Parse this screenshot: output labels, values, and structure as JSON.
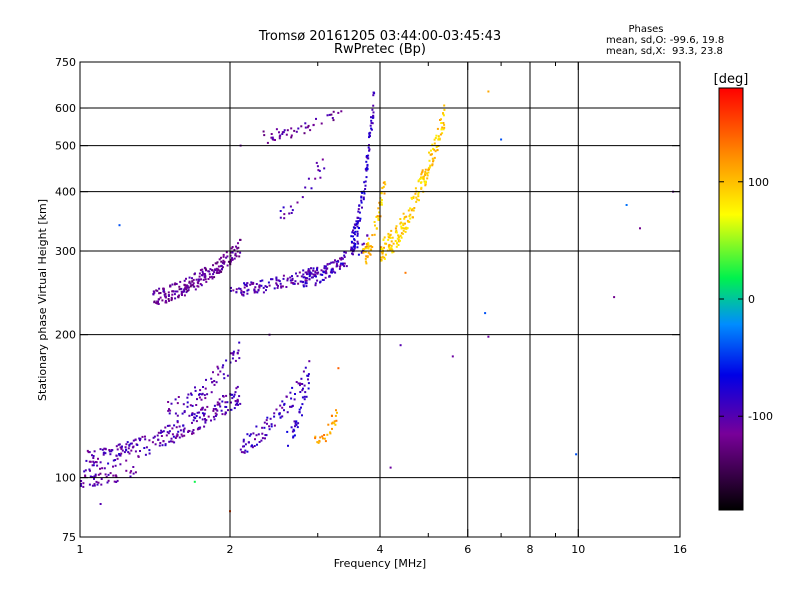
{
  "chart_data": {
    "type": "scatter",
    "title": "Tromsø 20161205 03:44:00-03:45:43",
    "subtitle": "RwPretec (Bp)",
    "stats": {
      "heading": "Phases",
      "line_o": "mean, sd,O: -99.6, 19.8",
      "line_x": "mean, sd,X:  93.3, 23.8"
    },
    "xlabel": "Frequency [MHz]",
    "ylabel": "Stationary phase Virtual Height [km]",
    "x_scale": "log",
    "y_scale": "log",
    "xlim": [
      1,
      16
    ],
    "ylim": [
      75,
      750
    ],
    "x_ticks": [
      1,
      2,
      4,
      6,
      8,
      10,
      16
    ],
    "x_tick_labels": [
      "1",
      "2",
      "4",
      "6",
      "8",
      "10",
      "16"
    ],
    "x_grid": [
      2,
      4,
      6,
      8,
      10
    ],
    "x_minor": [
      3,
      5,
      7,
      9
    ],
    "y_ticks": [
      75,
      100,
      200,
      300,
      400,
      500,
      600,
      750
    ],
    "y_tick_labels": [
      "75",
      "100",
      "200",
      "300",
      "400",
      "500",
      "600",
      "750"
    ],
    "y_grid": [
      100,
      200,
      300,
      400,
      500,
      600
    ],
    "grid": true,
    "colorbar": {
      "label": "[deg]",
      "range": [
        -180,
        180
      ],
      "ticks": [
        100,
        0,
        -100
      ],
      "tick_labels": [
        "100",
        "0",
        "-100"
      ],
      "colormap": "rainbow (black-purple-blue-cyan-green-yellow-orange-red)"
    },
    "traces": [
      {
        "f": [
          1.0,
          1.3
        ],
        "h": [
          98,
          104
        ],
        "phase": -105,
        "n": 45,
        "hs": 0.03
      },
      {
        "f": [
          1.0,
          2.1
        ],
        "h": [
          108,
          150
        ],
        "phase": -100,
        "n": 260,
        "hs": 0.05
      },
      {
        "f": [
          1.5,
          2.1
        ],
        "h": [
          140,
          185
        ],
        "phase": -100,
        "n": 70,
        "hs": 0.05
      },
      {
        "f": [
          2.1,
          2.9
        ],
        "h": [
          118,
          170
        ],
        "phase": -95,
        "n": 90,
        "hs": 0.05
      },
      {
        "f": [
          2.6,
          2.9
        ],
        "h": [
          120,
          165
        ],
        "phase": -80,
        "n": 30,
        "hs": 0.04
      },
      {
        "f": [
          2.95,
          3.3
        ],
        "h": [
          118,
          138
        ],
        "phase": 115,
        "n": 28,
        "hs": 0.04
      },
      {
        "f": [
          1.4,
          2.1
        ],
        "h": [
          240,
          305
        ],
        "phase": -115,
        "n": 220,
        "hs": 0.04
      },
      {
        "f": [
          2.0,
          3.4
        ],
        "h": [
          248,
          285
        ],
        "phase": -100,
        "n": 150,
        "hs": 0.03
      },
      {
        "f": [
          2.8,
          3.8
        ],
        "h": [
          260,
          320
        ],
        "phase": -90,
        "n": 80,
        "hs": 0.04
      },
      {
        "f": [
          3.5,
          3.9
        ],
        "h": [
          310,
          640
        ],
        "phase": -85,
        "n": 110,
        "hs": 0.06
      },
      {
        "f": [
          3.7,
          4.1
        ],
        "h": [
          290,
          420
        ],
        "phase": 100,
        "n": 60,
        "hs": 0.05
      },
      {
        "f": [
          4.0,
          5.4
        ],
        "h": [
          300,
          580
        ],
        "phase": 95,
        "n": 200,
        "hs": 0.06
      },
      {
        "f": [
          2.3,
          3.4
        ],
        "h": [
          520,
          600
        ],
        "phase": -110,
        "n": 45,
        "hs": 0.03
      },
      {
        "f": [
          2.5,
          3.1
        ],
        "h": [
          350,
          470
        ],
        "phase": -100,
        "n": 22,
        "hs": 0.06
      }
    ],
    "scatter_points": [
      {
        "x": 6.6,
        "y": 650,
        "phase": 110
      },
      {
        "x": 7.0,
        "y": 515,
        "phase": -40
      },
      {
        "x": 12.5,
        "y": 375,
        "phase": -30
      },
      {
        "x": 13.3,
        "y": 335,
        "phase": -120
      },
      {
        "x": 15.5,
        "y": 400,
        "phase": -110
      },
      {
        "x": 11.8,
        "y": 240,
        "phase": -120
      },
      {
        "x": 6.5,
        "y": 222,
        "phase": -40
      },
      {
        "x": 6.6,
        "y": 198,
        "phase": -110
      },
      {
        "x": 9.9,
        "y": 112,
        "phase": -40
      },
      {
        "x": 5.6,
        "y": 180,
        "phase": -110
      },
      {
        "x": 4.4,
        "y": 190,
        "phase": -100
      },
      {
        "x": 3.3,
        "y": 170,
        "phase": 140
      },
      {
        "x": 4.2,
        "y": 105,
        "phase": -110
      },
      {
        "x": 1.1,
        "y": 88,
        "phase": -100
      },
      {
        "x": 2.0,
        "y": 85,
        "phase": 150
      },
      {
        "x": 1.7,
        "y": 98,
        "phase": 20
      },
      {
        "x": 1.2,
        "y": 340,
        "phase": -40
      },
      {
        "x": 2.4,
        "y": 200,
        "phase": -110
      },
      {
        "x": 4.5,
        "y": 270,
        "phase": 130
      },
      {
        "x": 2.1,
        "y": 500,
        "phase": -110
      }
    ]
  }
}
